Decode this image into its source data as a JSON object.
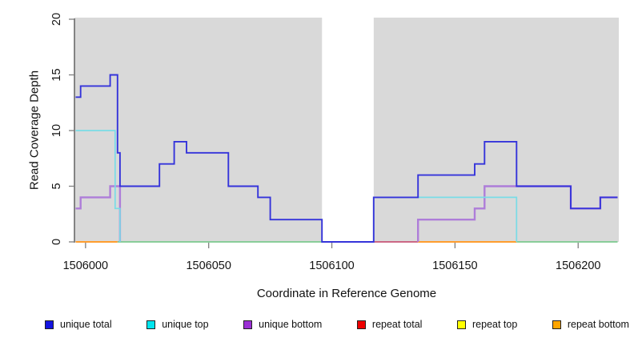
{
  "chart_data": {
    "type": "line",
    "subtype": "step-coverage",
    "title": "",
    "xlabel": "Coordinate in Reference Genome",
    "ylabel": "Read Coverage Depth",
    "xlim": [
      1505995.5,
      1506216.5
    ],
    "ylim": [
      0,
      20
    ],
    "x_ticks": [
      1506000,
      1506050,
      1506100,
      1506150,
      1506200
    ],
    "y_ticks": [
      0,
      5,
      10,
      15,
      20
    ],
    "grid": false,
    "plot_bg_color": "#d9d9d9",
    "masked_region": {
      "start": 1506096,
      "end": 1506117,
      "color": "#ffffff"
    },
    "axis_color": "#3f3f3f",
    "tick_color": "#7f7f7f",
    "text_color": "#141414",
    "legend_position": "bottom",
    "series": [
      {
        "name": "unique total",
        "legend_color": "#1313e0",
        "line_color": "#3534da",
        "width": 1.9,
        "z": 6,
        "segments": [
          [
            [
              1505996,
              13
            ],
            [
              1505998,
              13
            ],
            [
              1505998,
              14
            ],
            [
              1506010,
              14
            ],
            [
              1506010,
              15
            ],
            [
              1506013,
              15
            ],
            [
              1506013,
              8
            ],
            [
              1506014,
              8
            ],
            [
              1506014,
              5
            ],
            [
              1506030,
              5
            ],
            [
              1506030,
              7
            ],
            [
              1506036,
              7
            ],
            [
              1506036,
              9
            ],
            [
              1506041,
              9
            ],
            [
              1506041,
              8
            ],
            [
              1506058,
              8
            ],
            [
              1506058,
              5
            ],
            [
              1506070,
              5
            ],
            [
              1506070,
              4
            ],
            [
              1506075,
              4
            ],
            [
              1506075,
              2
            ],
            [
              1506096,
              2
            ],
            [
              1506096,
              0
            ],
            [
              1506117,
              0
            ],
            [
              1506117,
              4
            ],
            [
              1506135,
              4
            ],
            [
              1506135,
              6
            ],
            [
              1506158,
              6
            ],
            [
              1506158,
              7
            ],
            [
              1506162,
              7
            ],
            [
              1506162,
              9
            ],
            [
              1506175,
              9
            ],
            [
              1506175,
              5
            ],
            [
              1506197,
              5
            ],
            [
              1506197,
              3
            ],
            [
              1506209,
              3
            ],
            [
              1506209,
              4
            ],
            [
              1506216,
              4
            ]
          ]
        ]
      },
      {
        "name": "unique top",
        "legend_color": "#00e5ee",
        "line_color": "#79dce6",
        "width": 1.7,
        "z": 5,
        "segments": [
          [
            [
              1505996,
              10
            ],
            [
              1506012,
              10
            ],
            [
              1506012,
              3
            ],
            [
              1506014,
              3
            ],
            [
              1506014,
              0
            ]
          ],
          [
            [
              1506117,
              0
            ],
            [
              1506117,
              4
            ],
            [
              1506175,
              4
            ],
            [
              1506175,
              0
            ]
          ]
        ]
      },
      {
        "name": "unique bottom",
        "legend_color": "#9b30d5",
        "line_color": "#ae7dd9",
        "width": 2.4,
        "z": 4,
        "segments": [
          [
            [
              1505996,
              3
            ],
            [
              1505998,
              3
            ],
            [
              1505998,
              4
            ],
            [
              1506010,
              4
            ],
            [
              1506010,
              5
            ],
            [
              1506014,
              5
            ],
            [
              1506014,
              0
            ]
          ],
          [
            [
              1506135,
              0
            ],
            [
              1506135,
              2
            ],
            [
              1506158,
              2
            ],
            [
              1506158,
              3
            ],
            [
              1506162,
              3
            ],
            [
              1506162,
              5
            ],
            [
              1506197,
              5
            ],
            [
              1506197,
              3
            ],
            [
              1506209,
              3
            ],
            [
              1506209,
              4
            ],
            [
              1506216,
              4
            ]
          ]
        ]
      },
      {
        "name": "repeat total",
        "legend_color": "#ee0000",
        "line_color": "#c85577",
        "width": 1.8,
        "z": 2,
        "segments": [
          [
            [
              1506117,
              0
            ],
            [
              1506135,
              0
            ]
          ]
        ]
      },
      {
        "name": "repeat top",
        "legend_color": "#ffff00",
        "line_color": "#7cc98e",
        "width": 1.8,
        "z": 1,
        "segments": [
          [
            [
              1506013,
              0
            ],
            [
              1506096,
              0
            ]
          ],
          [
            [
              1506175,
              0
            ],
            [
              1506216,
              0
            ]
          ]
        ]
      },
      {
        "name": "repeat bottom",
        "legend_color": "#ffa500",
        "line_color": "#ff9d2e",
        "width": 2.0,
        "z": 3,
        "segments": [
          [
            [
              1505996,
              0
            ],
            [
              1506013,
              0
            ]
          ],
          [
            [
              1506135,
              0
            ],
            [
              1506175,
              0
            ]
          ]
        ]
      }
    ]
  }
}
